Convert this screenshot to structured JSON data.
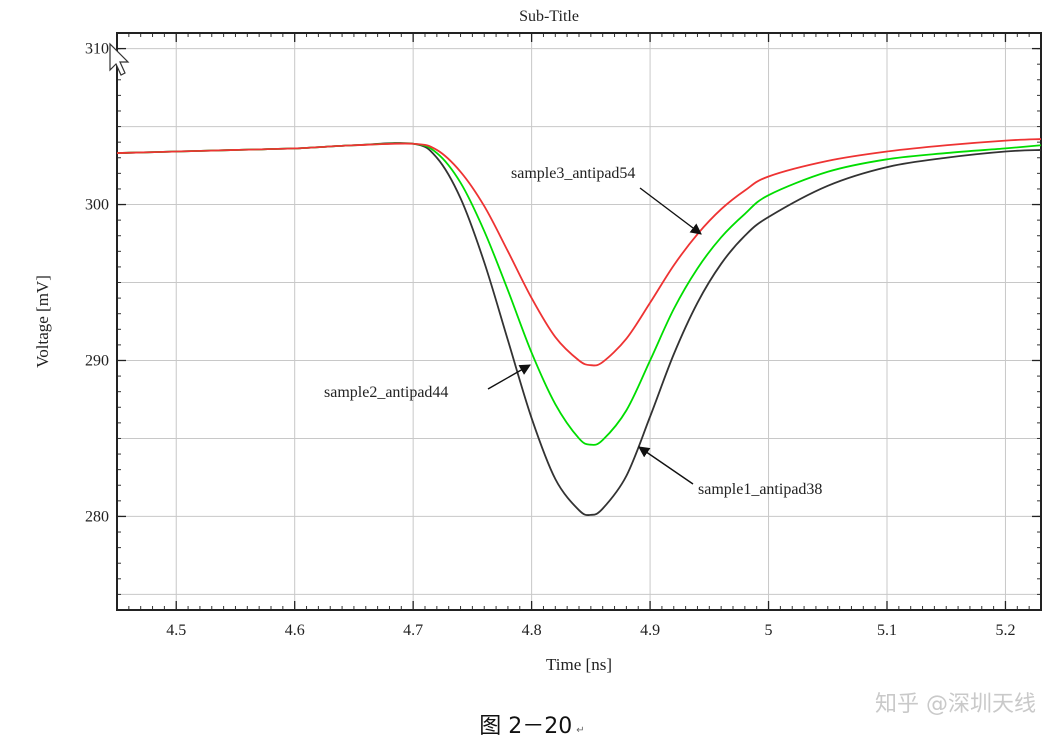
{
  "chart_data": {
    "type": "line",
    "title": "Sub-Title",
    "xlabel": "Time [ns]",
    "ylabel": "Voltage [mV]",
    "xlim": [
      4.45,
      5.23
    ],
    "ylim": [
      274,
      311
    ],
    "x_ticks": [
      4.5,
      4.6,
      4.7,
      4.8,
      4.9,
      5,
      5.1,
      5.2
    ],
    "x_tick_labels": [
      "4.5",
      "4.6",
      "4.7",
      "4.8",
      "4.9",
      "5",
      "5.1",
      "5.2"
    ],
    "y_ticks": [
      280,
      290,
      300,
      310
    ],
    "y_tick_labels": [
      "280",
      "290",
      "300",
      "310"
    ],
    "grid": true,
    "legend": "none",
    "series": [
      {
        "name": "sample1_antipad38",
        "color": "#333333",
        "x": [
          4.45,
          4.5,
          4.55,
          4.6,
          4.65,
          4.7,
          4.72,
          4.74,
          4.76,
          4.78,
          4.8,
          4.82,
          4.84,
          4.85,
          4.86,
          4.88,
          4.9,
          4.92,
          4.94,
          4.96,
          4.98,
          5.0,
          5.05,
          5.1,
          5.15,
          5.2,
          5.23
        ],
        "y": [
          303.3,
          303.4,
          303.5,
          303.6,
          303.8,
          303.9,
          303.0,
          300.4,
          296.3,
          291.3,
          286.3,
          282.4,
          280.4,
          280.1,
          280.5,
          282.6,
          286.4,
          290.4,
          293.7,
          296.2,
          298.0,
          299.2,
          301.2,
          302.4,
          303.0,
          303.4,
          303.5
        ]
      },
      {
        "name": "sample2_antipad44",
        "color": "#00dd00",
        "x": [
          4.45,
          4.5,
          4.55,
          4.6,
          4.65,
          4.7,
          4.72,
          4.74,
          4.76,
          4.78,
          4.8,
          4.82,
          4.84,
          4.85,
          4.86,
          4.88,
          4.9,
          4.92,
          4.94,
          4.96,
          4.98,
          5.0,
          5.05,
          5.1,
          5.15,
          5.2,
          5.23
        ],
        "y": [
          303.3,
          303.4,
          303.5,
          303.6,
          303.8,
          303.9,
          303.3,
          301.4,
          298.3,
          294.5,
          290.5,
          287.2,
          285.0,
          284.6,
          284.9,
          286.8,
          290.0,
          293.3,
          295.9,
          297.9,
          299.4,
          300.6,
          302.1,
          302.9,
          303.3,
          303.6,
          303.8
        ]
      },
      {
        "name": "sample3_antipad54",
        "color": "#ee3333",
        "x": [
          4.45,
          4.5,
          4.55,
          4.6,
          4.65,
          4.7,
          4.72,
          4.74,
          4.76,
          4.78,
          4.8,
          4.82,
          4.84,
          4.85,
          4.86,
          4.88,
          4.9,
          4.92,
          4.94,
          4.96,
          4.98,
          5.0,
          5.05,
          5.1,
          5.15,
          5.2,
          5.23
        ],
        "y": [
          303.3,
          303.4,
          303.5,
          303.6,
          303.8,
          303.9,
          303.5,
          302.1,
          299.9,
          297.0,
          294.0,
          291.5,
          290.0,
          289.7,
          289.9,
          291.4,
          293.7,
          296.1,
          298.1,
          299.7,
          300.9,
          301.8,
          302.8,
          303.4,
          303.8,
          304.1,
          304.2
        ]
      }
    ],
    "annotations": [
      {
        "text": "sample3_antipad54",
        "target_series": "sample3_antipad54"
      },
      {
        "text": "sample2_antipad44",
        "target_series": "sample2_antipad44"
      },
      {
        "text": "sample1_antipad38",
        "target_series": "sample1_antipad38"
      }
    ]
  },
  "caption": {
    "text": "图 2－20",
    "mark": "↵"
  },
  "watermark": "知乎 @深圳天线"
}
